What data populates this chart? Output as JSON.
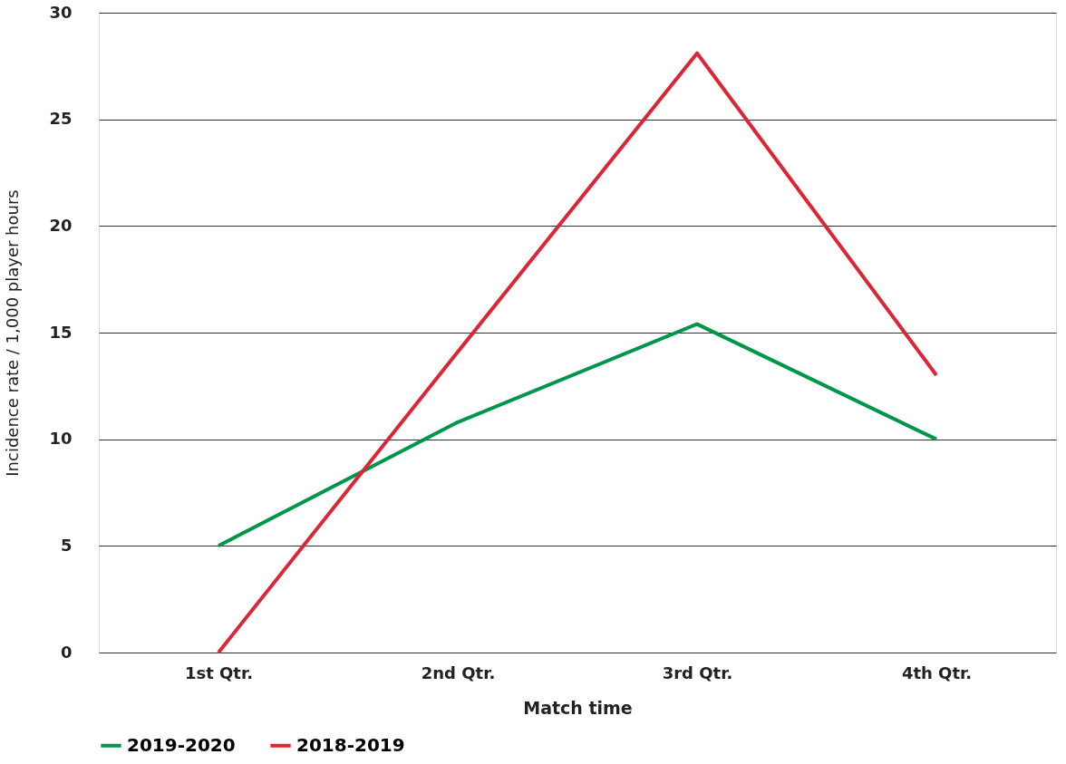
{
  "chart_data": {
    "type": "line",
    "xlabel": "Match time",
    "ylabel": "Incidence rate / 1,000 player hours",
    "categories": [
      "1st Qtr.",
      "2nd Qtr.",
      "3rd Qtr.",
      "4th Qtr."
    ],
    "series": [
      {
        "name": "2019-2020",
        "color": "#00964a",
        "values": [
          5.0,
          10.8,
          15.4,
          10.0
        ]
      },
      {
        "name": "2018-2019",
        "color": "#dc2535",
        "values": [
          0.0,
          14.1,
          28.1,
          13.0
        ]
      }
    ],
    "ylim": [
      0,
      30
    ],
    "yticks": [
      0,
      5,
      10,
      15,
      20,
      25,
      30
    ],
    "grid": "y",
    "legend": "bottom",
    "marker": "none",
    "line_style": "solid"
  }
}
